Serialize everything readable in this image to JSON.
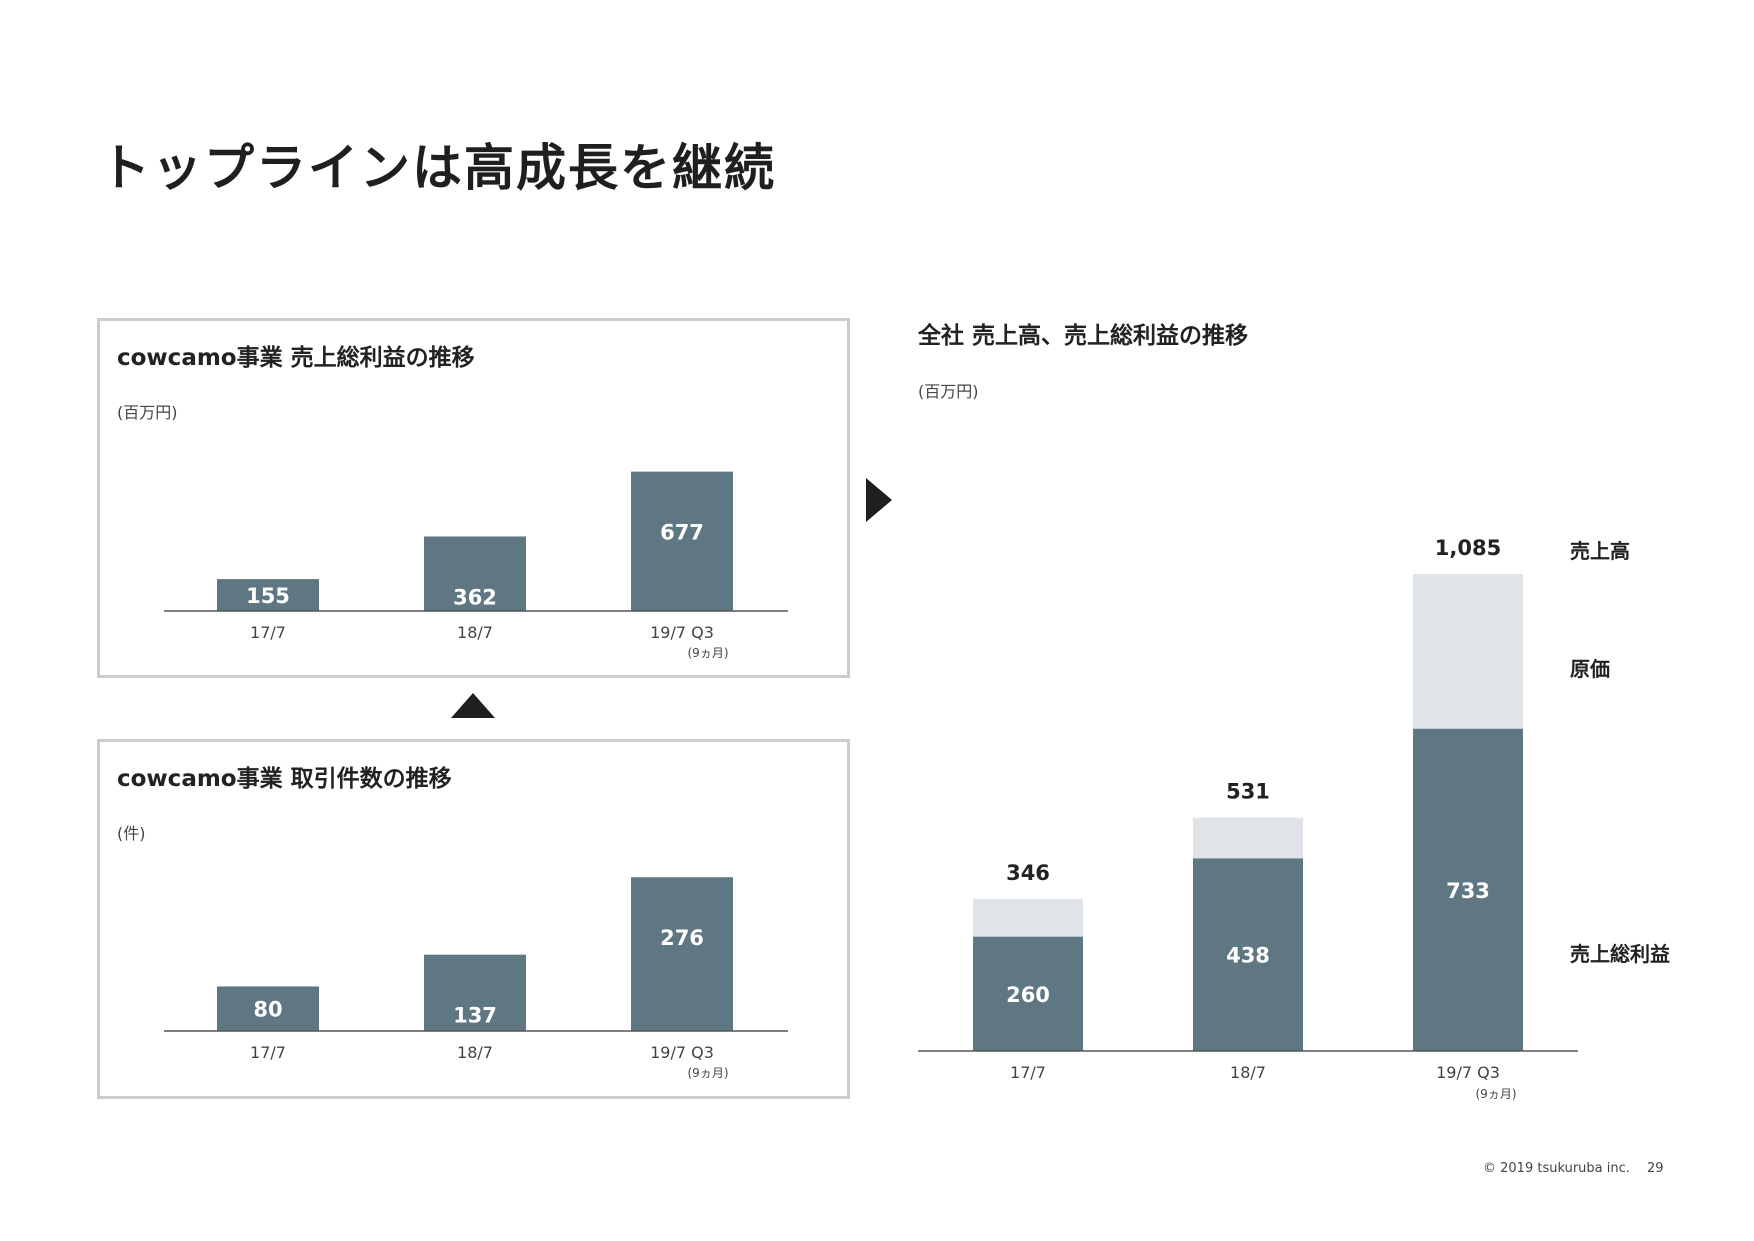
{
  "slide": {
    "title": "トップラインは高成長を継続",
    "copyright": "© 2019 tsukuruba inc.",
    "page_number": "29"
  },
  "colors": {
    "bar_dark": "#5f7683",
    "bar_light": "#e0e4e8",
    "axis": "#555555",
    "panel_border": "#cccccc"
  },
  "icons": {
    "up_arrow": "triangle-up-icon",
    "right_arrow": "triangle-right-icon"
  },
  "chart_data": [
    {
      "type": "bar",
      "title": "cowcamo事業 売上総利益の推移",
      "unit": "(百万円)",
      "categories": [
        "17/7",
        "18/7",
        "19/7 Q3"
      ],
      "category_notes": [
        "",
        "",
        "(9ヵ月)"
      ],
      "values": [
        155,
        362,
        677
      ],
      "ylim": [
        0,
        680
      ]
    },
    {
      "type": "bar",
      "title": "cowcamo事業 取引件数の推移",
      "unit": "(件)",
      "categories": [
        "17/7",
        "18/7",
        "19/7 Q3"
      ],
      "category_notes": [
        "",
        "",
        "(9ヵ月)"
      ],
      "values": [
        80,
        137,
        276
      ],
      "ylim": [
        0,
        280
      ]
    },
    {
      "type": "bar",
      "stacked": true,
      "title": "全社 売上高、売上総利益の推移",
      "unit": "(百万円)",
      "categories": [
        "17/7",
        "18/7",
        "19/7 Q3"
      ],
      "category_notes": [
        "",
        "",
        "(9ヵ月)"
      ],
      "totals": [
        346,
        531,
        1085
      ],
      "total_labels": [
        "346",
        "531",
        "1,085"
      ],
      "series": [
        {
          "name": "売上総利益",
          "values": [
            260,
            438,
            733
          ]
        },
        {
          "name": "原価",
          "values": [
            86,
            93,
            352
          ]
        }
      ],
      "legend_labels": [
        "売上高",
        "原価",
        "売上総利益"
      ],
      "ylim": [
        0,
        1085
      ]
    }
  ]
}
